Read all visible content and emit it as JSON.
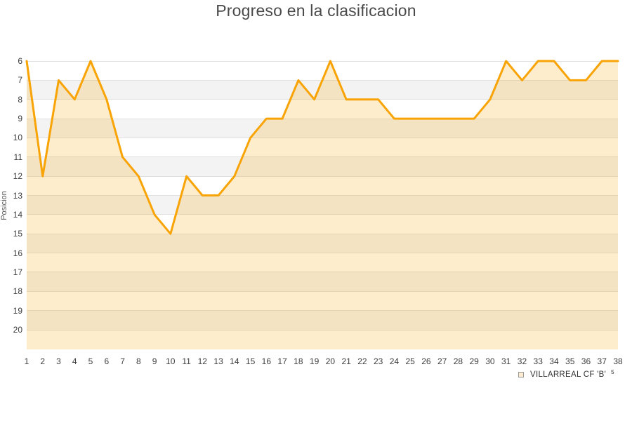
{
  "title": "Progreso en la clasificacion",
  "chart_data": {
    "type": "line",
    "title": "Progreso en la clasificacion",
    "xlabel": "",
    "ylabel": "Posicion",
    "x": [
      1,
      2,
      3,
      4,
      5,
      6,
      7,
      8,
      9,
      10,
      11,
      12,
      13,
      14,
      15,
      16,
      17,
      18,
      19,
      20,
      21,
      22,
      23,
      24,
      25,
      26,
      27,
      28,
      29,
      30,
      31,
      32,
      33,
      34,
      35,
      36,
      37,
      38
    ],
    "series": [
      {
        "name": "VILLARREAL CF 'B'",
        "values": [
          6,
          12,
          7,
          8,
          6,
          8,
          11,
          12,
          14,
          15,
          12,
          13,
          13,
          12,
          10,
          9,
          9,
          7,
          8,
          6,
          8,
          8,
          8,
          9,
          9,
          9,
          9,
          9,
          9,
          8,
          6,
          7,
          6,
          6,
          7,
          7,
          6,
          6
        ]
      }
    ],
    "y_ticks": [
      6,
      7,
      8,
      9,
      10,
      11,
      12,
      13,
      14,
      15,
      16,
      17,
      18,
      19,
      20
    ],
    "y_axis_inverted": true,
    "ylim": [
      6,
      21
    ],
    "grid": "horizontal",
    "banding": "alternating horizontal stripes",
    "legend_position": "bottom-right",
    "legend_suffix": "5",
    "colors": {
      "line": "#f9a406",
      "area_fill": "rgba(249,164,6,0.2)",
      "band_gray": "#f3f3f3",
      "gridline": "#e0e0e0",
      "tick_text": "#3d3d3d",
      "title_text": "#4a4a4a"
    }
  }
}
